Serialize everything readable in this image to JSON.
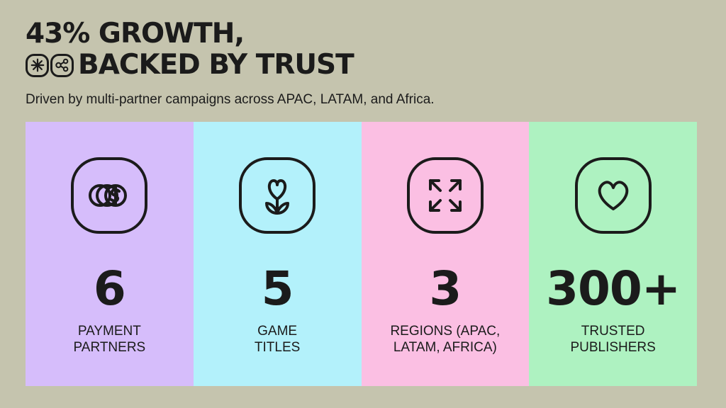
{
  "headline": {
    "line1": "43% GROWTH,",
    "line2": "BACKED BY TRUST"
  },
  "subtitle": "Driven by multi-partner campaigns across APAC, LATAM, and Africa.",
  "stats": [
    {
      "value": "6",
      "label": "PAYMENT\nPARTNERS",
      "color": "#d6bdfb",
      "icon": "coins-dollar-icon"
    },
    {
      "value": "5",
      "label": "GAME\nTITLES",
      "color": "#b3f1fb",
      "icon": "heart-flower-icon"
    },
    {
      "value": "3",
      "label": "REGIONS (APAC,\nLATAM, AFRICA)",
      "color": "#fbbfe3",
      "icon": "expand-arrows-icon"
    },
    {
      "value": "300+",
      "label": "TRUSTED\nPUBLISHERS",
      "color": "#aef2c1",
      "icon": "heart-icon"
    }
  ],
  "colors": {
    "background": "#c5c4ae",
    "ink": "#1b1b1b"
  }
}
